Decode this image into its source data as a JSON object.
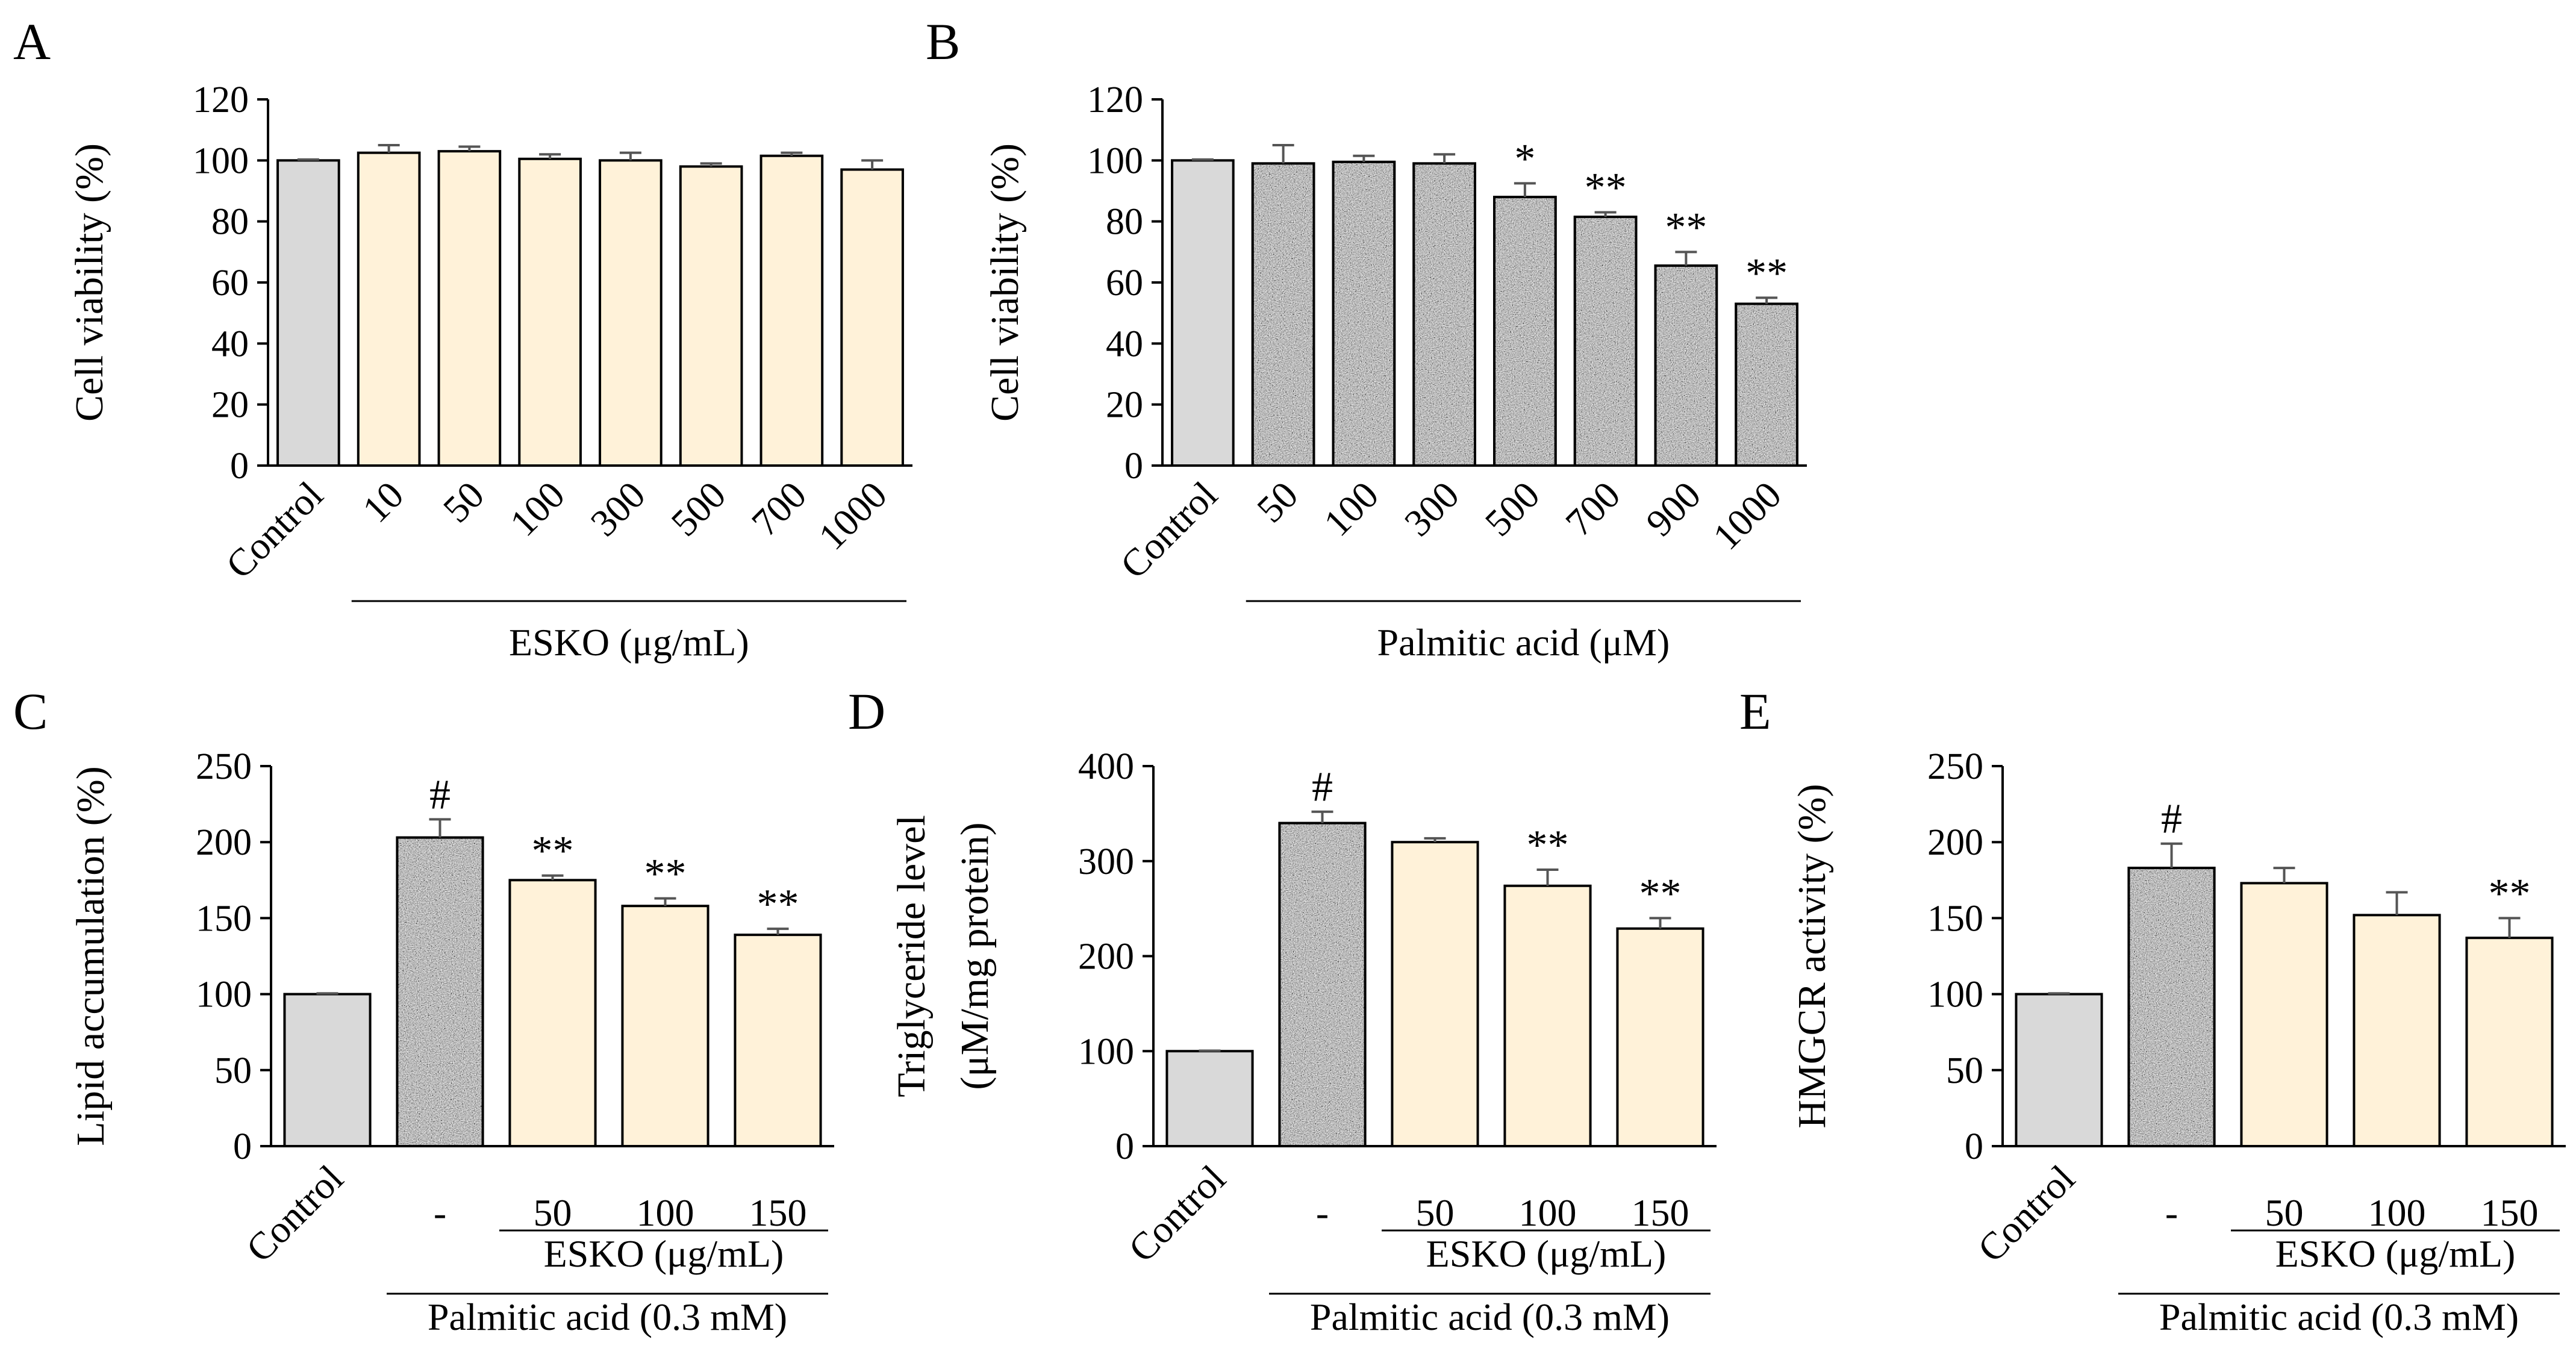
{
  "colors": {
    "control_fill": "#d9d9d9",
    "esko_fill": "#fff2d9",
    "palmitic_fill": "#9a9a9a",
    "bar_stroke": "#000000"
  },
  "chart_data": [
    {
      "panel": "A",
      "type": "bar",
      "ylabel": "Cell viability (%)",
      "ylim": [
        0,
        120
      ],
      "yticks": [
        "0",
        "20",
        "40",
        "60",
        "80",
        "100",
        "120"
      ],
      "categories": [
        "Control",
        "10",
        "50",
        "100",
        "300",
        "500",
        "700",
        "1000"
      ],
      "values": [
        100,
        102.5,
        103,
        100.5,
        100,
        98,
        101.5,
        97
      ],
      "errors": [
        0.3,
        2.5,
        1.5,
        1.5,
        2.5,
        1.0,
        1.0,
        3.0
      ],
      "fills": [
        "control",
        "esko",
        "esko",
        "esko",
        "esko",
        "esko",
        "esko",
        "esko"
      ],
      "significance": [
        "",
        "",
        "",
        "",
        "",
        "",
        "",
        ""
      ],
      "groups": [
        {
          "label": "ESKO (μg/mL)",
          "from": 1,
          "to": 7,
          "level": 0
        }
      ]
    },
    {
      "panel": "B",
      "type": "bar",
      "ylabel": "Cell viability (%)",
      "ylim": [
        0,
        120
      ],
      "yticks": [
        "0",
        "20",
        "40",
        "60",
        "80",
        "100",
        "120"
      ],
      "categories": [
        "Control",
        "50",
        "100",
        "300",
        "500",
        "700",
        "900",
        "1000"
      ],
      "values": [
        100,
        99,
        99.5,
        99,
        88,
        81.5,
        65.5,
        53
      ],
      "errors": [
        0.3,
        6.0,
        2.0,
        3.0,
        4.5,
        1.5,
        4.5,
        2.0
      ],
      "fills": [
        "control",
        "palmitic",
        "palmitic",
        "palmitic",
        "palmitic",
        "palmitic",
        "palmitic",
        "palmitic"
      ],
      "significance": [
        "",
        "",
        "",
        "",
        "*",
        "**",
        "**",
        "**"
      ],
      "groups": [
        {
          "label": "Palmitic acid (μM)",
          "from": 1,
          "to": 7,
          "level": 0
        }
      ]
    },
    {
      "panel": "C",
      "type": "bar",
      "ylabel": "Lipid accumulation (%)",
      "ylim": [
        0,
        250
      ],
      "yticks": [
        "0",
        "50",
        "100",
        "150",
        "200",
        "250"
      ],
      "categories": [
        "Control",
        "-",
        "50",
        "100",
        "150"
      ],
      "values": [
        100,
        203,
        175,
        158,
        139
      ],
      "errors": [
        0.5,
        12,
        3,
        5,
        4
      ],
      "fills": [
        "control",
        "palmitic",
        "esko",
        "esko",
        "esko"
      ],
      "significance": [
        "",
        "#",
        "**",
        "**",
        "**"
      ],
      "groups": [
        {
          "label": "ESKO (μg/mL)",
          "from": 2,
          "to": 4,
          "level": 0
        },
        {
          "label": "Palmitic acid (0.3 mM)",
          "from": 1,
          "to": 4,
          "level": 1
        }
      ]
    },
    {
      "panel": "D",
      "type": "bar",
      "ylabel": "Triglyceride level",
      "ylabel2": "(μM/mg protein)",
      "ylim": [
        0,
        400
      ],
      "yticks": [
        "0",
        "100",
        "200",
        "300",
        "400"
      ],
      "categories": [
        "Control",
        "-",
        "50",
        "100",
        "150"
      ],
      "values": [
        100,
        340,
        320,
        274,
        229
      ],
      "errors": [
        0.5,
        12,
        4,
        17,
        11
      ],
      "fills": [
        "control",
        "palmitic",
        "esko",
        "esko",
        "esko"
      ],
      "significance": [
        "",
        "#",
        "",
        "**",
        "**"
      ],
      "groups": [
        {
          "label": "ESKO (μg/mL)",
          "from": 2,
          "to": 4,
          "level": 0
        },
        {
          "label": "Palmitic acid (0.3 mM)",
          "from": 1,
          "to": 4,
          "level": 1
        }
      ]
    },
    {
      "panel": "E",
      "type": "bar",
      "ylabel": "HMGCR activity (%)",
      "ylim": [
        0,
        250
      ],
      "yticks": [
        "0",
        "50",
        "100",
        "150",
        "200",
        "250"
      ],
      "categories": [
        "Control",
        "-",
        "50",
        "100",
        "150"
      ],
      "values": [
        100,
        183,
        173,
        152,
        137
      ],
      "errors": [
        0.5,
        16,
        10,
        15,
        13
      ],
      "fills": [
        "control",
        "palmitic",
        "esko",
        "esko",
        "esko"
      ],
      "significance": [
        "",
        "#",
        "",
        "",
        "**"
      ],
      "groups": [
        {
          "label": "ESKO (μg/mL)",
          "from": 2,
          "to": 4,
          "level": 0
        },
        {
          "label": "Palmitic acid (0.3 mM)",
          "from": 1,
          "to": 4,
          "level": 1
        }
      ]
    }
  ]
}
